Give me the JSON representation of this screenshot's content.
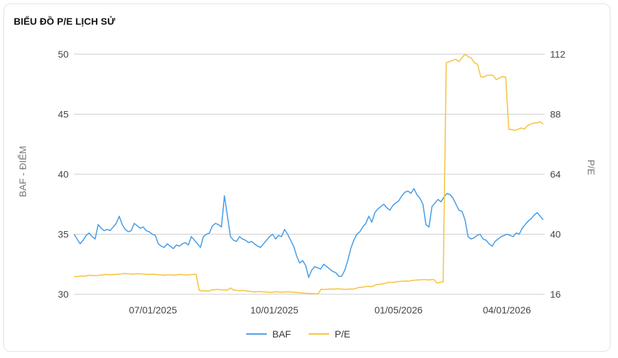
{
  "card": {
    "title": "BIỂU ĐỒ P/E LỊCH SỬ"
  },
  "colors": {
    "baf": "#4a9fe8",
    "pe": "#f6c443",
    "grid": "#cccccc"
  },
  "chart_data": {
    "type": "line",
    "title": "BIỂU ĐỒ P/E LỊCH SỬ",
    "ylabel": "BAF - ĐIỂM",
    "y2label": "P/E",
    "ylim": [
      30,
      50
    ],
    "y2lim": [
      16,
      112
    ],
    "yticks": [
      "50",
      "45",
      "40",
      "35",
      "30"
    ],
    "y2ticks": [
      "112",
      "88",
      "64",
      "40",
      "16"
    ],
    "xticks": [
      "07/01/2025",
      "10/01/2025",
      "01/05/2026",
      "04/01/2026"
    ],
    "grid": true,
    "legend_position": "bottom",
    "series": [
      {
        "name": "BAF",
        "axis": "left",
        "color": "#4a9fe8",
        "values": [
          35.0,
          34.6,
          34.2,
          34.5,
          34.9,
          35.1,
          34.8,
          34.6,
          35.8,
          35.5,
          35.3,
          35.4,
          35.3,
          35.6,
          35.9,
          36.5,
          35.8,
          35.4,
          35.2,
          35.3,
          35.9,
          35.7,
          35.5,
          35.6,
          35.3,
          35.2,
          35.0,
          34.9,
          34.2,
          34.0,
          33.9,
          34.2,
          34.0,
          33.8,
          34.1,
          34.0,
          34.2,
          34.3,
          34.1,
          34.8,
          34.5,
          34.2,
          33.9,
          34.8,
          35.0,
          35.1,
          35.7,
          35.9,
          35.8,
          35.6,
          38.2,
          36.5,
          34.8,
          34.5,
          34.4,
          34.8,
          34.6,
          34.5,
          34.3,
          34.4,
          34.2,
          34.0,
          33.9,
          34.2,
          34.5,
          34.8,
          35.0,
          34.6,
          34.9,
          34.8,
          35.4,
          35.0,
          34.5,
          34.0,
          33.2,
          32.6,
          32.8,
          32.4,
          31.4,
          32.0,
          32.3,
          32.2,
          32.1,
          32.5,
          32.3,
          32.1,
          31.9,
          31.8,
          31.5,
          31.5,
          32.0,
          32.8,
          33.8,
          34.5,
          35.0,
          35.2,
          35.6,
          35.9,
          36.5,
          36.0,
          36.8,
          37.1,
          37.3,
          37.5,
          37.2,
          37.0,
          37.4,
          37.6,
          37.8,
          38.2,
          38.5,
          38.6,
          38.4,
          38.8,
          38.3,
          38.0,
          37.5,
          35.8,
          35.6,
          37.3,
          37.6,
          37.9,
          37.7,
          38.1,
          38.4,
          38.3,
          38.0,
          37.5,
          37.0,
          36.9,
          36.2,
          34.8,
          34.6,
          34.7,
          34.9,
          35.0,
          34.6,
          34.5,
          34.2,
          34.0,
          34.4,
          34.6,
          34.8,
          34.9,
          35.0,
          34.9,
          34.8,
          35.1,
          35.0,
          35.5,
          35.8,
          36.1,
          36.3,
          36.6,
          36.8,
          36.5,
          36.2
        ]
      },
      {
        "name": "P/E",
        "axis": "right",
        "color": "#f6c443",
        "values": [
          23.1,
          23.0,
          23.3,
          23.2,
          23.4,
          23.6,
          23.5,
          23.4,
          23.6,
          23.7,
          23.9,
          23.8,
          23.8,
          23.9,
          24.0,
          24.1,
          24.3,
          24.2,
          24.1,
          24.0,
          24.2,
          24.1,
          24.1,
          24.0,
          23.9,
          24.0,
          23.9,
          23.8,
          23.7,
          23.6,
          23.8,
          23.7,
          23.6,
          23.8,
          23.9,
          23.8,
          23.7,
          23.8,
          23.9,
          24.0,
          17.6,
          17.3,
          17.4,
          17.2,
          17.7,
          17.8,
          17.9,
          17.8,
          17.7,
          17.6,
          18.5,
          17.7,
          17.5,
          17.4,
          17.5,
          17.3,
          17.2,
          17.0,
          16.9,
          17.1,
          17.0,
          16.9,
          16.8,
          16.7,
          16.9,
          17.0,
          16.8,
          16.8,
          17.0,
          16.9,
          16.8,
          16.7,
          16.6,
          16.5,
          16.4,
          16.3,
          16.3,
          16.2,
          16.1,
          18.0,
          17.9,
          18.0,
          18.1,
          18.0,
          18.2,
          18.1,
          18.0,
          17.9,
          18.1,
          18.0,
          18.3,
          18.7,
          18.8,
          19.0,
          19.2,
          19.0,
          19.5,
          19.9,
          20.0,
          20.2,
          20.6,
          20.8,
          20.7,
          21.0,
          21.1,
          21.2,
          21.3,
          21.2,
          21.5,
          21.6,
          21.7,
          21.8,
          21.9,
          21.7,
          21.8,
          21.9,
          20.5,
          20.7,
          21.0,
          108.5,
          109.0,
          109.5,
          110.0,
          109.0,
          110.5,
          112.0,
          111.0,
          110.5,
          108.5,
          108.0,
          103.0,
          102.8,
          103.5,
          103.7,
          103.5,
          101.8,
          102.5,
          103.0,
          102.8,
          82.0,
          81.8,
          81.5,
          82.0,
          82.5,
          82.0,
          83.5,
          84.0,
          84.5,
          84.5,
          85.0,
          84.0
        ]
      }
    ]
  },
  "legend": {
    "baf": "BAF",
    "pe": "P/E"
  }
}
